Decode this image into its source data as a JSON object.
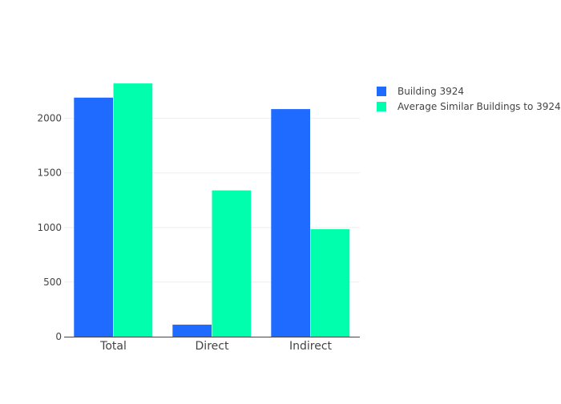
{
  "chart_data": {
    "type": "bar",
    "categories": [
      "Total",
      "Direct",
      "Indirect"
    ],
    "series": [
      {
        "name": "Building 3924",
        "color": "#1f6bff",
        "values": [
          2190,
          110,
          2085
        ]
      },
      {
        "name": "Average Similar Buildings to 3924",
        "color": "#00ffad",
        "values": [
          2320,
          1340,
          985
        ]
      }
    ],
    "yticks": [
      0,
      500,
      1000,
      1500,
      2000
    ],
    "ylim": [
      0,
      2350
    ],
    "grid": true,
    "legend_position": "top-right"
  }
}
